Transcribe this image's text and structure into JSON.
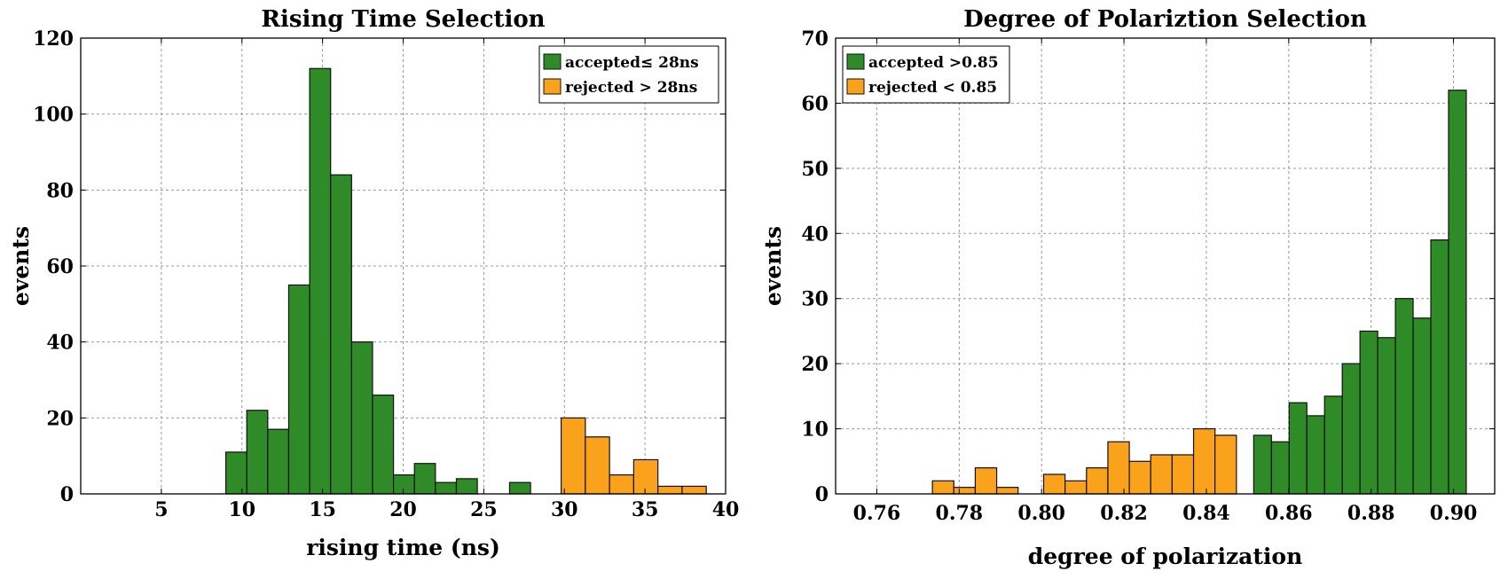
{
  "chart_data": [
    {
      "type": "bar",
      "title": "Rising Time Selection",
      "xlabel": "rising time (ns)",
      "ylabel": "events",
      "xlim": [
        0,
        40
      ],
      "ylim": [
        0,
        120
      ],
      "xticks": [
        5,
        10,
        15,
        20,
        25,
        30,
        35,
        40
      ],
      "xtick_labels": [
        "5",
        "10",
        "15",
        "20",
        "25",
        "30",
        "35",
        "40"
      ],
      "yticks": [
        0,
        20,
        40,
        60,
        80,
        100,
        120
      ],
      "ytick_labels": [
        "0",
        "20",
        "40",
        "60",
        "80",
        "100",
        "120"
      ],
      "grid": true,
      "legend_position": "top-right",
      "series": [
        {
          "name": "accepted≤ 28ns",
          "color": "#2e8b27",
          "bins": [
            {
              "x0": 9.0,
              "x1": 10.3,
              "value": 11
            },
            {
              "x0": 10.3,
              "x1": 11.6,
              "value": 22
            },
            {
              "x0": 11.6,
              "x1": 12.9,
              "value": 17
            },
            {
              "x0": 12.9,
              "x1": 14.2,
              "value": 55
            },
            {
              "x0": 14.2,
              "x1": 15.5,
              "value": 112
            },
            {
              "x0": 15.5,
              "x1": 16.8,
              "value": 84
            },
            {
              "x0": 16.8,
              "x1": 18.1,
              "value": 40
            },
            {
              "x0": 18.1,
              "x1": 19.4,
              "value": 26
            },
            {
              "x0": 19.4,
              "x1": 20.7,
              "value": 5
            },
            {
              "x0": 20.7,
              "x1": 22.0,
              "value": 8
            },
            {
              "x0": 22.0,
              "x1": 23.3,
              "value": 3
            },
            {
              "x0": 23.3,
              "x1": 24.6,
              "value": 4
            },
            {
              "x0": 26.6,
              "x1": 27.9,
              "value": 3
            }
          ]
        },
        {
          "name": "rejected > 28ns",
          "color": "#faa21b",
          "bins": [
            {
              "x0": 29.8,
              "x1": 31.3,
              "value": 20
            },
            {
              "x0": 31.3,
              "x1": 32.8,
              "value": 15
            },
            {
              "x0": 32.8,
              "x1": 34.3,
              "value": 5
            },
            {
              "x0": 34.3,
              "x1": 35.8,
              "value": 9
            },
            {
              "x0": 35.8,
              "x1": 37.3,
              "value": 2
            },
            {
              "x0": 37.3,
              "x1": 38.8,
              "value": 2
            }
          ]
        }
      ]
    },
    {
      "type": "bar",
      "title": "Degree of Polariztion Selection",
      "xlabel": "degree of polarization",
      "ylabel": "events",
      "xlim": [
        0.75,
        0.91
      ],
      "ylim": [
        0,
        70
      ],
      "xticks": [
        0.76,
        0.78,
        0.8,
        0.82,
        0.84,
        0.86,
        0.88,
        0.9
      ],
      "xtick_labels": [
        "0.76",
        "0.78",
        "0.80",
        "0.82",
        "0.84",
        "0.86",
        "0.88",
        "0.90"
      ],
      "yticks": [
        0,
        10,
        20,
        30,
        40,
        50,
        60,
        70
      ],
      "ytick_labels": [
        "0",
        "10",
        "20",
        "30",
        "40",
        "50",
        "60",
        "70"
      ],
      "grid": true,
      "legend_position": "top-left",
      "series": [
        {
          "name": "accepted >0.85",
          "color": "#2e8b27",
          "bins": [
            {
              "x0": 0.8515,
              "x1": 0.8558,
              "value": 9
            },
            {
              "x0": 0.8558,
              "x1": 0.8601,
              "value": 8
            },
            {
              "x0": 0.8601,
              "x1": 0.8644,
              "value": 14
            },
            {
              "x0": 0.8644,
              "x1": 0.8687,
              "value": 12
            },
            {
              "x0": 0.8687,
              "x1": 0.873,
              "value": 15
            },
            {
              "x0": 0.873,
              "x1": 0.8773,
              "value": 20
            },
            {
              "x0": 0.8773,
              "x1": 0.8816,
              "value": 25
            },
            {
              "x0": 0.8816,
              "x1": 0.8859,
              "value": 24
            },
            {
              "x0": 0.8859,
              "x1": 0.8902,
              "value": 30
            },
            {
              "x0": 0.8902,
              "x1": 0.8945,
              "value": 27
            },
            {
              "x0": 0.8945,
              "x1": 0.8988,
              "value": 39
            },
            {
              "x0": 0.8988,
              "x1": 0.9031,
              "value": 62
            }
          ]
        },
        {
          "name": "rejected < 0.85",
          "color": "#faa21b",
          "bins": [
            {
              "x0": 0.7735,
              "x1": 0.7787,
              "value": 2
            },
            {
              "x0": 0.7787,
              "x1": 0.7839,
              "value": 1
            },
            {
              "x0": 0.7839,
              "x1": 0.7891,
              "value": 4
            },
            {
              "x0": 0.7891,
              "x1": 0.7943,
              "value": 1
            },
            {
              "x0": 0.8005,
              "x1": 0.8057,
              "value": 3
            },
            {
              "x0": 0.8057,
              "x1": 0.8109,
              "value": 2
            },
            {
              "x0": 0.8109,
              "x1": 0.8161,
              "value": 4
            },
            {
              "x0": 0.8161,
              "x1": 0.8213,
              "value": 8
            },
            {
              "x0": 0.8213,
              "x1": 0.8265,
              "value": 5
            },
            {
              "x0": 0.8265,
              "x1": 0.8317,
              "value": 6
            },
            {
              "x0": 0.8317,
              "x1": 0.8369,
              "value": 6
            },
            {
              "x0": 0.8369,
              "x1": 0.8421,
              "value": 10
            },
            {
              "x0": 0.8421,
              "x1": 0.8473,
              "value": 9
            }
          ]
        }
      ]
    }
  ]
}
